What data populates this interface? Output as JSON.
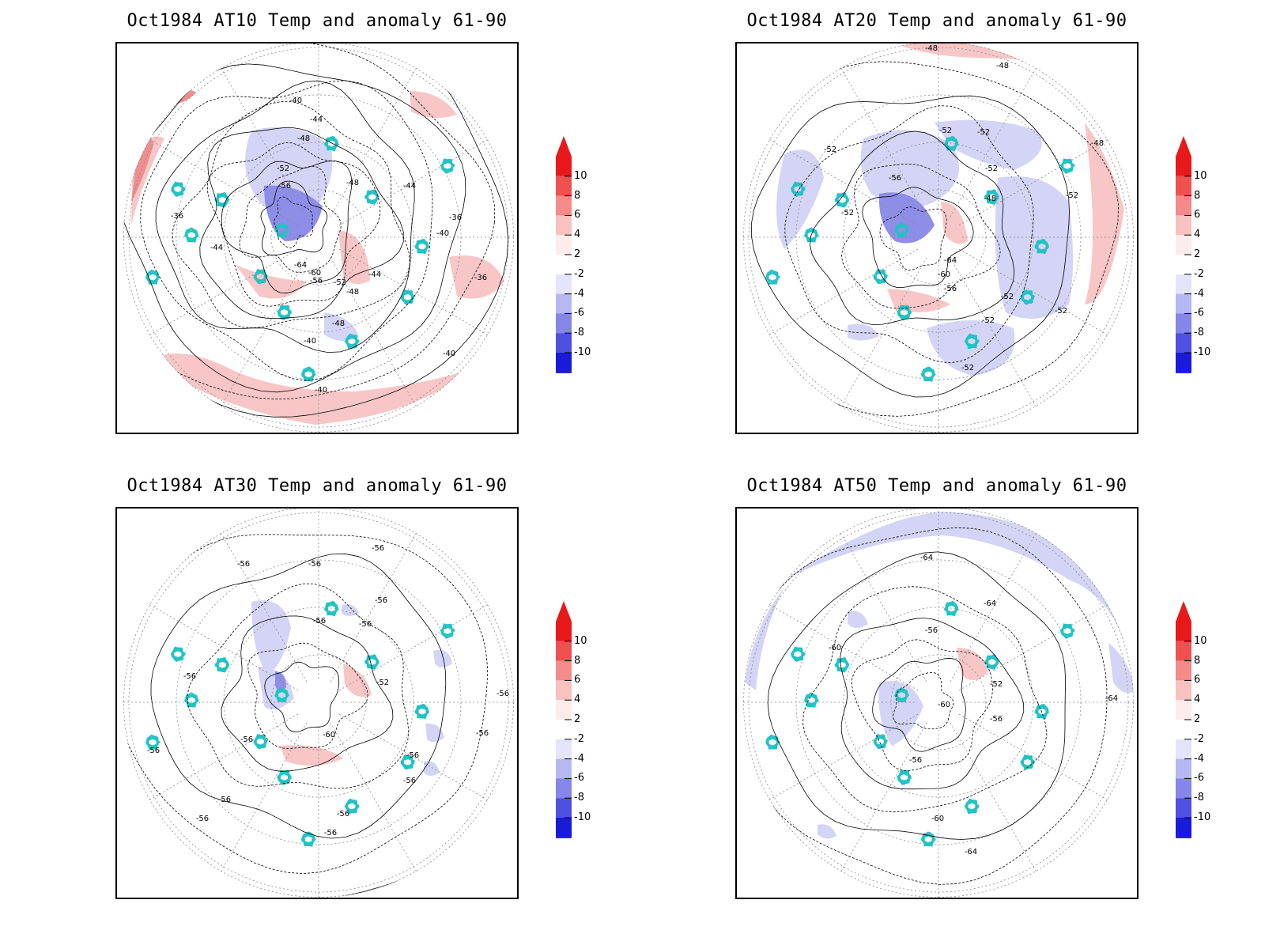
{
  "figure": {
    "panels": [
      {
        "title": "Oct1984 AT10 Temp and anomaly 61-90",
        "variant": "at10",
        "contour_labels": [
          {
            "text": "-40",
            "at": "n"
          },
          {
            "text": "-44",
            "at": "n2"
          },
          {
            "text": "-48",
            "at": "n3"
          },
          {
            "text": "-52",
            "at": "c1"
          },
          {
            "text": "-56",
            "at": "c2"
          },
          {
            "text": "-36",
            "at": "w"
          },
          {
            "text": "-44",
            "at": "w2"
          },
          {
            "text": "-48",
            "at": "e1"
          },
          {
            "text": "-44",
            "at": "e2"
          },
          {
            "text": "-40",
            "at": "e3"
          },
          {
            "text": "-36",
            "at": "e4"
          },
          {
            "text": "-36",
            "at": "e5"
          },
          {
            "text": "-64",
            "at": "c3"
          },
          {
            "text": "-60",
            "at": "c4"
          },
          {
            "text": "-56",
            "at": "c5"
          },
          {
            "text": "-52",
            "at": "c6"
          },
          {
            "text": "-48",
            "at": "s1"
          },
          {
            "text": "-44",
            "at": "s2"
          },
          {
            "text": "-48",
            "at": "s3"
          },
          {
            "text": "-40",
            "at": "s4"
          },
          {
            "text": "-40",
            "at": "s5"
          },
          {
            "text": "-40",
            "at": "s6"
          }
        ]
      },
      {
        "title": "Oct1984 AT20 Temp and anomaly 61-90",
        "variant": "at20",
        "contour_labels": [
          {
            "text": "-48",
            "at": "n"
          },
          {
            "text": "-48",
            "at": "n2"
          },
          {
            "text": "-52",
            "at": "c1"
          },
          {
            "text": "-52",
            "at": "c2"
          },
          {
            "text": "-52",
            "at": "w"
          },
          {
            "text": "-56",
            "at": "c3"
          },
          {
            "text": "-52",
            "at": "e1"
          },
          {
            "text": "-48",
            "at": "e2"
          },
          {
            "text": "-52",
            "at": "e3"
          },
          {
            "text": "-52",
            "at": "w2"
          },
          {
            "text": "-64",
            "at": "c4"
          },
          {
            "text": "-60",
            "at": "c5"
          },
          {
            "text": "-56",
            "at": "c6"
          },
          {
            "text": "-52",
            "at": "s1"
          },
          {
            "text": "-52",
            "at": "s2"
          },
          {
            "text": "-52",
            "at": "s3"
          },
          {
            "text": "-52",
            "at": "e4"
          },
          {
            "text": "-48",
            "at": "e5"
          }
        ]
      },
      {
        "title": "Oct1984 AT30 Temp and anomaly 61-90",
        "variant": "at30",
        "contour_labels": [
          {
            "text": "-56",
            "at": "n"
          },
          {
            "text": "-56",
            "at": "n2"
          },
          {
            "text": "-56",
            "at": "n3"
          },
          {
            "text": "-56",
            "at": "n4"
          },
          {
            "text": "-56",
            "at": "c1"
          },
          {
            "text": "-56",
            "at": "c2"
          },
          {
            "text": "-56",
            "at": "w"
          },
          {
            "text": "-52",
            "at": "e1"
          },
          {
            "text": "-56",
            "at": "e2"
          },
          {
            "text": "-56",
            "at": "w2"
          },
          {
            "text": "-60",
            "at": "c3"
          },
          {
            "text": "-56",
            "at": "c4"
          },
          {
            "text": "-56",
            "at": "e3"
          },
          {
            "text": "-56",
            "at": "s1"
          },
          {
            "text": "-56",
            "at": "w3"
          },
          {
            "text": "-56",
            "at": "s2"
          },
          {
            "text": "-56",
            "at": "s3"
          },
          {
            "text": "-56",
            "at": "s4"
          },
          {
            "text": "-56",
            "at": "s5"
          }
        ]
      },
      {
        "title": "Oct1984 AT50 Temp and anomaly 61-90",
        "variant": "at50",
        "contour_labels": [
          {
            "text": "-64",
            "at": "n"
          },
          {
            "text": "-64",
            "at": "n2"
          },
          {
            "text": "-56",
            "at": "c1"
          },
          {
            "text": "-60",
            "at": "w"
          },
          {
            "text": "-52",
            "at": "e1"
          },
          {
            "text": "-64",
            "at": "e2"
          },
          {
            "text": "-60",
            "at": "c2"
          },
          {
            "text": "-56",
            "at": "c3"
          },
          {
            "text": "-56",
            "at": "c4"
          },
          {
            "text": "-60",
            "at": "s1"
          },
          {
            "text": "-64",
            "at": "s2"
          }
        ]
      }
    ],
    "colorbar": {
      "ticks": [
        "10",
        "8",
        "6",
        "4",
        "2",
        "-2",
        "-4",
        "-6",
        "-8",
        "-10"
      ],
      "colors": [
        "#e8191b",
        "#f0504f",
        "#f48a89",
        "#f9c2c1",
        "#fdeceb",
        "#ffffff",
        "#e4e4fb",
        "#b7b7f3",
        "#8585ea",
        "#4f4fe2",
        "#1a1ad9"
      ],
      "top_arrow_color": "#e8191b",
      "bottom_arrow_color": "#1a1ad9"
    },
    "colors": {
      "coastline": "#22c3c3",
      "contour": "#000000",
      "grid": "#8a8a8a",
      "warm": "#f8c6c6",
      "warm_strong": "#ee8e8e",
      "cold": "#d4d4f6",
      "cold_strong": "#8e8ee8"
    }
  }
}
